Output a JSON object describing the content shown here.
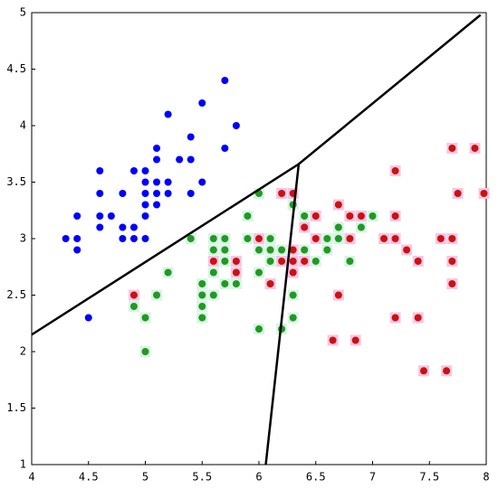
{
  "chart_data": {
    "type": "scatter",
    "xlim": [
      4,
      8
    ],
    "ylim": [
      1,
      5
    ],
    "xticks": [
      4,
      4.5,
      5,
      5.5,
      6,
      6.5,
      7,
      7.5,
      8
    ],
    "yticks": [
      1,
      1.5,
      2,
      2.5,
      3,
      3.5,
      4,
      4.5,
      5
    ],
    "series": [
      {
        "color": "#0000ff",
        "x": [
          4.3,
          4.4,
          4.4,
          4.4,
          4.5,
          4.6,
          4.6,
          4.6,
          4.6,
          4.7,
          4.8,
          4.8,
          4.8,
          4.9,
          4.9,
          4.9,
          5.0,
          5.0,
          5.0,
          5.0,
          5.0,
          5.0,
          5.1,
          5.1,
          5.1,
          5.1,
          5.1,
          5.2,
          5.2,
          5.2,
          5.3,
          5.4,
          5.4,
          5.4,
          5.5,
          5.5,
          5.7,
          5.7,
          5.8
        ],
        "y": [
          3.0,
          3.2,
          3.0,
          2.9,
          2.3,
          3.6,
          3.4,
          3.2,
          3.1,
          3.2,
          3.4,
          3.1,
          3.0,
          3.6,
          3.1,
          3.0,
          3.6,
          3.5,
          3.4,
          3.3,
          3.2,
          3.0,
          3.8,
          3.7,
          3.5,
          3.4,
          3.3,
          4.1,
          3.5,
          3.4,
          3.7,
          3.9,
          3.7,
          3.4,
          3.5,
          4.2,
          4.4,
          3.8,
          4.0
        ]
      },
      {
        "color": "#229922",
        "x": [
          4.9,
          5.0,
          5.0,
          5.1,
          5.2,
          5.4,
          5.5,
          5.5,
          5.5,
          5.5,
          5.6,
          5.6,
          5.6,
          5.6,
          5.6,
          5.7,
          5.7,
          5.7,
          5.7,
          5.8,
          5.8,
          5.9,
          5.9,
          6.0,
          6.0,
          6.0,
          6.0,
          6.1,
          6.1,
          6.1,
          6.2,
          6.2,
          6.3,
          6.3,
          6.3,
          6.4,
          6.4,
          6.5,
          6.6,
          6.6,
          6.7,
          6.7,
          6.8,
          6.9,
          7.0
        ],
        "y": [
          2.4,
          2.3,
          2.0,
          2.5,
          2.7,
          3.0,
          2.6,
          2.5,
          2.4,
          2.3,
          3.0,
          2.9,
          2.8,
          2.7,
          2.5,
          3.0,
          2.9,
          2.8,
          2.6,
          2.7,
          2.6,
          3.2,
          3.0,
          3.4,
          2.9,
          2.7,
          2.2,
          3.0,
          2.9,
          2.8,
          2.9,
          2.2,
          3.3,
          2.5,
          2.3,
          3.2,
          2.9,
          2.8,
          3.0,
          2.9,
          3.1,
          3.0,
          2.8,
          3.1,
          3.2
        ]
      },
      {
        "color": "#cc1111",
        "x": [
          4.9,
          5.6,
          5.8,
          5.8,
          6.0,
          6.1,
          6.2,
          6.2,
          6.3,
          6.3,
          6.3,
          6.3,
          6.4,
          6.4,
          6.5,
          6.5,
          6.7,
          6.7,
          6.8,
          6.8,
          6.65,
          6.85,
          6.9,
          7.1,
          7.2,
          7.2,
          7.2,
          7.2,
          7.3,
          7.4,
          7.4,
          7.45,
          7.6,
          7.7,
          7.7,
          7.7,
          7.7,
          7.65,
          7.75,
          7.9,
          7.98
        ],
        "y": [
          2.5,
          2.8,
          2.8,
          2.7,
          3.0,
          2.6,
          3.4,
          2.8,
          3.4,
          2.9,
          2.8,
          2.7,
          3.1,
          2.8,
          3.2,
          3.0,
          3.3,
          2.5,
          3.2,
          3.0,
          2.1,
          2.1,
          3.2,
          3.0,
          3.6,
          3.2,
          3.0,
          2.3,
          2.9,
          2.8,
          2.3,
          1.83,
          3.0,
          3.8,
          3.0,
          2.8,
          2.6,
          1.83,
          3.4,
          3.8,
          3.4
        ]
      }
    ],
    "lines": [
      {
        "color": "#000000",
        "x": [
          4,
          6.35,
          7.95
        ],
        "y": [
          2.15,
          3.66,
          4.98
        ]
      },
      {
        "color": "#000000",
        "x": [
          6.35,
          6.06
        ],
        "y": [
          3.66,
          1.0
        ]
      }
    ]
  }
}
